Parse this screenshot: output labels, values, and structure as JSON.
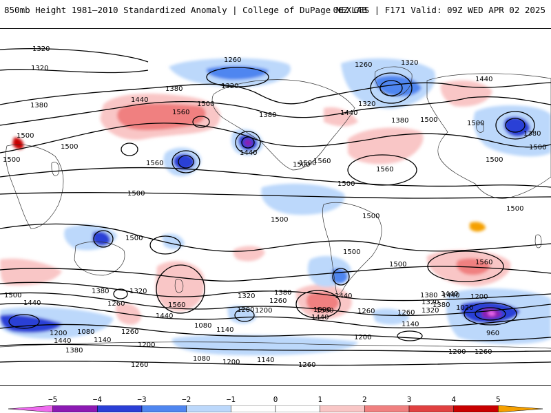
{
  "header": {
    "title_left": "850mb Height 1981–2010 Standardized Anomaly | College of DuPage NEXLAB",
    "title_right": "06Z GFS | F171 Valid: 09Z WED APR 02 2025"
  },
  "colors": {
    "neg5": "#ee6aee",
    "neg4": "#8c1ab3",
    "neg3": "#2a3fd6",
    "neg2": "#4f86f0",
    "neg1": "#bcd8fb",
    "zero": "#ffffff",
    "pos1": "#f9c6c6",
    "pos2": "#f08080",
    "pos3": "#e04040",
    "pos4": "#c80000",
    "pos5": "#f5a000"
  },
  "colorbar": {
    "ticks": [
      "−5",
      "−4",
      "−3",
      "−2",
      "−1",
      "0",
      "1",
      "2",
      "3",
      "4",
      "5"
    ]
  },
  "contour_labels": [
    "1320",
    "1320",
    "1260",
    "1260",
    "1320",
    "1320",
    "1380",
    "1440",
    "1500",
    "1380",
    "1320",
    "1440",
    "1560",
    "1500",
    "1380",
    "1440",
    "1380",
    "1500",
    "1380",
    "1500",
    "1500",
    "1560",
    "1440",
    "1500",
    "1500",
    "1560",
    "1500",
    "1500",
    "1560",
    "1500",
    "1500",
    "1500",
    "1500",
    "1500",
    "1500",
    "1500",
    "1500",
    "1500",
    "1440",
    "1440",
    "1380",
    "1320",
    "1260",
    "1320",
    "1560",
    "1440",
    "1380",
    "1260",
    "1320",
    "1380",
    "1260",
    "1200",
    "1440",
    "1500",
    "1440",
    "1380",
    "1320",
    "1440",
    "1020",
    "1200",
    "1260",
    "1140",
    "960",
    "1260",
    "1080",
    "1140",
    "1200",
    "1080",
    "1200",
    "1140",
    "1260",
    "1260",
    "1080",
    "1140",
    "1200",
    "1260",
    "1200",
    "1380",
    "1440",
    "1200",
    "1200",
    "1500",
    "1560",
    "1500"
  ]
}
